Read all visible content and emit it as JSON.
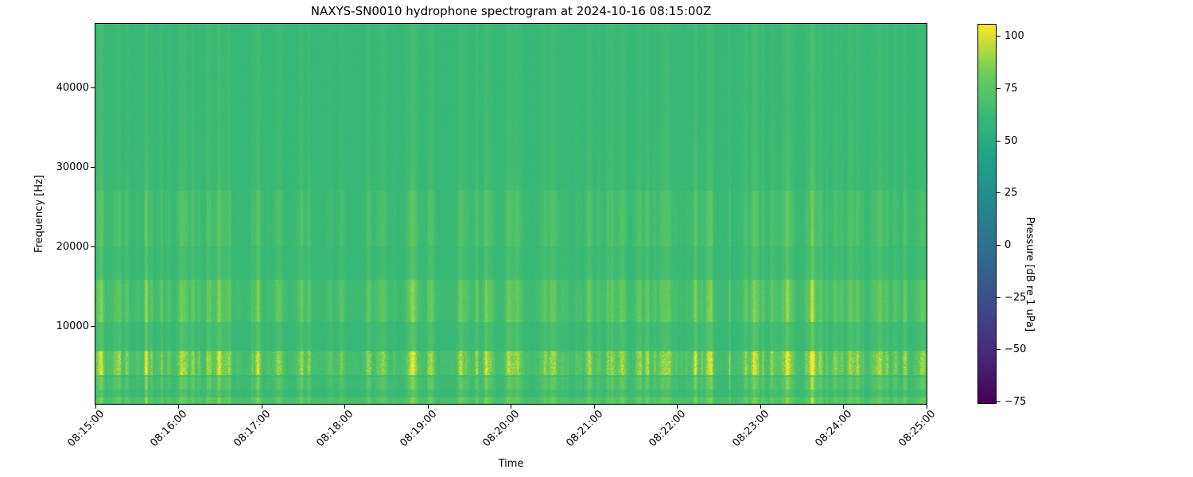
{
  "title": "NAXYS-SN0010 hydrophone spectrogram at 2024-10-16 08:15:00Z",
  "axes": {
    "xlabel": "Time",
    "ylabel": "Frequency [Hz]",
    "x_tick_labels": [
      "08:15:00",
      "08:16:00",
      "08:17:00",
      "08:18:00",
      "08:19:00",
      "08:20:00",
      "08:21:00",
      "08:22:00",
      "08:23:00",
      "08:24:00",
      "08:25:00"
    ],
    "y_tick_labels": [
      "10000",
      "20000",
      "30000",
      "40000"
    ],
    "y_tick_values": [
      10000,
      20000,
      30000,
      40000
    ]
  },
  "colorbar": {
    "label": "Pressure [dB re 1 uPa]",
    "tick_labels": [
      "100",
      "75",
      "50",
      "25",
      "0",
      "−25",
      "−50",
      "−75"
    ],
    "tick_values": [
      100,
      75,
      50,
      25,
      0,
      -25,
      -50,
      -75
    ],
    "vmin": -76,
    "vmax": 106,
    "colormap": "viridis",
    "colormap_stops": [
      [
        0.0,
        "#440154"
      ],
      [
        0.125,
        "#482878"
      ],
      [
        0.25,
        "#3e4989"
      ],
      [
        0.375,
        "#31688e"
      ],
      [
        0.5,
        "#26828e"
      ],
      [
        0.625,
        "#1f9e89"
      ],
      [
        0.75,
        "#35b779"
      ],
      [
        0.875,
        "#6ece58"
      ],
      [
        1.0,
        "#fde725"
      ]
    ]
  },
  "chart_data": {
    "type": "heatmap",
    "title": "NAXYS-SN0010 hydrophone spectrogram at 2024-10-16 08:15:00Z",
    "xlabel": "Time",
    "ylabel": "Frequency [Hz]",
    "x_ticks": [
      "08:15:00",
      "08:16:00",
      "08:17:00",
      "08:18:00",
      "08:19:00",
      "08:20:00",
      "08:21:00",
      "08:22:00",
      "08:23:00",
      "08:24:00",
      "08:25:00"
    ],
    "y_ticks": [
      10000,
      20000,
      30000,
      40000
    ],
    "x_range": [
      "08:15:00",
      "08:25:00"
    ],
    "y_range_hz": [
      200,
      48000
    ],
    "value_label": "Pressure [dB re 1 uPa]",
    "value_range_db": [
      -76,
      106
    ],
    "colormap": "viridis",
    "grid": false,
    "legend": false,
    "background_level_db": 62,
    "features": [
      {
        "kind": "steady-tonal-band",
        "freq_hz": [
          300,
          1000
        ],
        "approx_level_db": 68,
        "description": "continuous slightly brighter green band near the bottom edge"
      },
      {
        "kind": "weak-speckle-band",
        "freq_hz": [
          2000,
          3600
        ],
        "approx_level_db": 70,
        "description": "faint speckled band above the low tonal band"
      },
      {
        "kind": "broadband-click-band",
        "freq_hz": [
          3800,
          6800
        ],
        "approx_peak_db": 100,
        "description": "dense yellow speckles from repeated broadband transients; brightest recurring feature"
      },
      {
        "kind": "mid-frequency-band",
        "freq_hz": [
          10500,
          15800
        ],
        "approx_level_db": 75,
        "description": "moderate yellow-green vertical striping around 12-14 kHz"
      },
      {
        "kind": "faint-upper-band",
        "freq_hz": [
          20000,
          27000
        ],
        "approx_level_db": 66,
        "description": "very faint vertical striping"
      },
      {
        "kind": "vertical-transients",
        "freq_hz": [
          200,
          48000
        ],
        "description": "broadband vertical streaks every few seconds spanning the full band, fading above ~30 kHz; activity densest toward 08:24-08:25"
      }
    ],
    "render_params": {
      "seed": 20241016,
      "base_level_db": 62,
      "pixel_noise_db": 1.3,
      "column_base_noise_db": 1.6,
      "transient_events": 175,
      "transient_strength_db": [
        2,
        18
      ],
      "transient_width_cols": [
        0.8,
        3.2
      ],
      "right_side_activity_bias": 0.45,
      "streak_profile": {
        "floor": 0.18,
        "gain": 0.55,
        "cutoff_hz": 55000
      },
      "bands": [
        {
          "name": "low-tonal",
          "f0_hz": 300,
          "f1_hz": 1000,
          "base_db": 6,
          "column_gain": 0.4,
          "speckle_db": 2
        },
        {
          "name": "low-mid-speckle",
          "f0_hz": 2000,
          "f1_hz": 3600,
          "base_db": 0.5,
          "column_gain": 0.7,
          "speckle_db": 3.5
        },
        {
          "name": "click-band",
          "f0_hz": 3800,
          "f1_hz": 6800,
          "base_db": 2,
          "column_gain": 1.6,
          "speckle_db": 13
        },
        {
          "name": "mid-band",
          "f0_hz": 10500,
          "f1_hz": 15800,
          "base_db": 1,
          "column_gain": 1.0,
          "speckle_db": 5
        },
        {
          "name": "upper-faint",
          "f0_hz": 20000,
          "f1_hz": 27000,
          "base_db": 0,
          "column_gain": 0.5,
          "speckle_db": 2
        }
      ]
    }
  }
}
